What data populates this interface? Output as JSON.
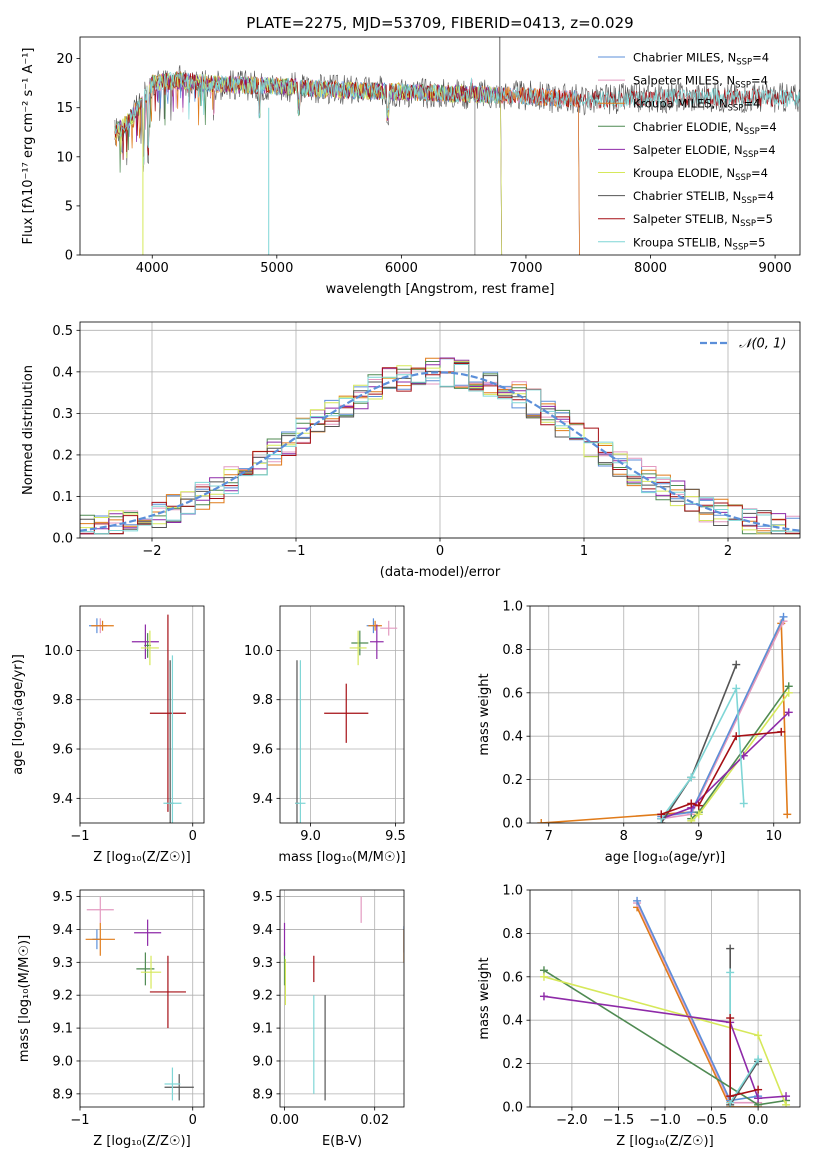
{
  "colors": {
    "Chabrier MILES": "#5b8fd9",
    "Salpeter MILES": "#e39ac0",
    "Kroupa MILES": "#e07b1a",
    "Chabrier ELODIE": "#4f8a52",
    "Salpeter ELODIE": "#8e2aa8",
    "Kroupa ELODIE": "#d6e85a",
    "Chabrier STELIB": "#555555",
    "Salpeter STELIB": "#a50f15",
    "Kroupa STELIB": "#7fd6d6"
  },
  "chart_data": [
    {
      "id": "spectrum",
      "type": "line",
      "title": "PLATE=2275, MJD=53709, FIBERID=0413, z=0.029",
      "xlabel": "wavelength [Angstrom, rest frame]",
      "ylabel": "Flux [fλ10⁻¹⁷ erg cm⁻² s⁻¹ A⁻¹]",
      "xlim": [
        3420,
        9200
      ],
      "ylim": [
        0,
        22.2
      ],
      "xticks": [
        "4000",
        "5000",
        "6000",
        "7000",
        "8000",
        "9000"
      ],
      "yticks": [
        "0",
        "5",
        "10",
        "15",
        "20"
      ],
      "grid": false,
      "legend_position": "top-right",
      "legend": [
        {
          "label": "Chabrier MILES, N",
          "sub": "SSP",
          "suffix": "=4",
          "color": "Chabrier MILES"
        },
        {
          "label": "Salpeter MILES, N",
          "sub": "SSP",
          "suffix": "=4",
          "color": "Salpeter MILES"
        },
        {
          "label": "Kroupa MILES, N",
          "sub": "SSP",
          "suffix": "=4",
          "color": "Kroupa MILES"
        },
        {
          "label": "Chabrier ELODIE, N",
          "sub": "SSP",
          "suffix": "=4",
          "color": "Chabrier ELODIE"
        },
        {
          "label": "Salpeter ELODIE, N",
          "sub": "SSP",
          "suffix": "=4",
          "color": "Salpeter ELODIE"
        },
        {
          "label": "Kroupa ELODIE, N",
          "sub": "SSP",
          "suffix": "=4",
          "color": "Kroupa ELODIE"
        },
        {
          "label": "Chabrier STELIB, N",
          "sub": "SSP",
          "suffix": "=4",
          "color": "Chabrier STELIB"
        },
        {
          "label": "Salpeter STELIB, N",
          "sub": "SSP",
          "suffix": "=5",
          "color": "Salpeter STELIB"
        },
        {
          "label": "Kroupa STELIB, N",
          "sub": "SSP",
          "suffix": "=5",
          "color": "Kroupa STELIB"
        }
      ],
      "x_range": [
        3700,
        9200
      ],
      "continuum_knots": [
        [
          3700,
          12.5
        ],
        [
          3800,
          13.5
        ],
        [
          3900,
          15.2
        ],
        [
          4000,
          17.5
        ],
        [
          4200,
          17.8
        ],
        [
          4500,
          17.4
        ],
        [
          5000,
          17.2
        ],
        [
          5500,
          16.8
        ],
        [
          6000,
          16.6
        ],
        [
          6500,
          16.4
        ],
        [
          7000,
          16.2
        ],
        [
          7500,
          15.8
        ],
        [
          8000,
          16.0
        ],
        [
          8500,
          16.1
        ],
        [
          9000,
          16.0
        ],
        [
          9200,
          16.0
        ]
      ]
    },
    {
      "id": "residuals",
      "type": "histogram",
      "xlabel": "(data-model)/error",
      "ylabel": "Normed distribution",
      "xlim": [
        -2.5,
        2.5
      ],
      "ylim": [
        0,
        0.52
      ],
      "xticks": [
        "−2",
        "−1",
        "0",
        "1",
        "2"
      ],
      "yticks": [
        "0.0",
        "0.1",
        "0.2",
        "0.3",
        "0.4",
        "0.5"
      ],
      "grid": true,
      "legend_position": "top-right",
      "legend": [
        {
          "label": "𝒩(0, 1)",
          "color": "#5b8fd9",
          "dashed": true
        }
      ],
      "bin_width": 0.1,
      "reference_curve": "normal(0,1)"
    },
    {
      "id": "age_vs_Z",
      "type": "errorbar",
      "xlabel": "Z [log₁₀(Z/Z☉)]",
      "ylabel": "age  [log₁₀(age/yr)]",
      "xlim": [
        -1.0,
        0.1
      ],
      "ylim": [
        9.3,
        10.18
      ],
      "xticks": [
        {
          "v": -1,
          "t": "−1"
        },
        {
          "v": 0,
          "t": "0"
        }
      ],
      "yticks": [
        {
          "v": 9.4,
          "t": "9.4"
        },
        {
          "v": 9.6,
          "t": "9.6"
        },
        {
          "v": 9.8,
          "t": "9.8"
        },
        {
          "v": 10.0,
          "t": "10.0"
        }
      ],
      "grid": true,
      "points": [
        {
          "s": "Chabrier MILES",
          "x": -0.85,
          "y": 10.1,
          "xe": 0.07,
          "ye": 0.03
        },
        {
          "s": "Salpeter MILES",
          "x": -0.82,
          "y": 10.1,
          "xe": 0.06,
          "ye": 0.03
        },
        {
          "s": "Kroupa MILES",
          "x": -0.8,
          "y": 10.1,
          "xe": 0.1,
          "ye": 0.02
        },
        {
          "s": "Chabrier ELODIE",
          "x": -0.4,
          "y": 10.02,
          "xe": 0.03,
          "ye": 0.05
        },
        {
          "s": "Salpeter ELODIE",
          "x": -0.42,
          "y": 10.035,
          "xe": 0.12,
          "ye": 0.07
        },
        {
          "s": "Kroupa ELODIE",
          "x": -0.38,
          "y": 10.01,
          "xe": 0.08,
          "ye": 0.07
        },
        {
          "s": "Chabrier STELIB",
          "x": -0.2,
          "y": 9.38,
          "xe": 0.03,
          "ye": 0.58
        },
        {
          "s": "Salpeter STELIB",
          "x": -0.22,
          "y": 9.745,
          "xe": 0.16,
          "ye": 0.4
        },
        {
          "s": "Kroupa STELIB",
          "x": -0.18,
          "y": 9.38,
          "xe": 0.08,
          "ye": 0.6
        }
      ]
    },
    {
      "id": "age_vs_mass",
      "type": "errorbar",
      "xlabel": "mass [log₁₀(M/M☉)]",
      "ylabel": "",
      "xlim": [
        8.82,
        9.55
      ],
      "ylim": [
        9.3,
        10.18
      ],
      "xticks": [
        {
          "v": 9.0,
          "t": "9.0"
        },
        {
          "v": 9.5,
          "t": "9.5"
        }
      ],
      "yticks": [
        {
          "v": 9.4,
          "t": "9.4"
        },
        {
          "v": 9.6,
          "t": "9.6"
        },
        {
          "v": 9.8,
          "t": "9.8"
        },
        {
          "v": 10.0,
          "t": "10.0"
        }
      ],
      "grid": true,
      "points": [
        {
          "s": "Chabrier MILES",
          "x": 9.37,
          "y": 10.1,
          "xe": 0.04,
          "ye": 0.03
        },
        {
          "s": "Salpeter MILES",
          "x": 9.46,
          "y": 10.09,
          "xe": 0.05,
          "ye": 0.03
        },
        {
          "s": "Kroupa MILES",
          "x": 9.38,
          "y": 10.1,
          "xe": 0.04,
          "ye": 0.02
        },
        {
          "s": "Chabrier ELODIE",
          "x": 9.29,
          "y": 10.03,
          "xe": 0.05,
          "ye": 0.05
        },
        {
          "s": "Salpeter ELODIE",
          "x": 9.39,
          "y": 10.035,
          "xe": 0.04,
          "ye": 0.07
        },
        {
          "s": "Kroupa ELODIE",
          "x": 9.28,
          "y": 10.01,
          "xe": 0.05,
          "ye": 0.07
        },
        {
          "s": "Chabrier STELIB",
          "x": 8.92,
          "y": 9.38,
          "xe": 0.01,
          "ye": 0.58
        },
        {
          "s": "Salpeter STELIB",
          "x": 9.21,
          "y": 9.745,
          "xe": 0.13,
          "ye": 0.12
        },
        {
          "s": "Kroupa STELIB",
          "x": 8.94,
          "y": 9.38,
          "xe": 0.03,
          "ye": 0.58
        }
      ]
    },
    {
      "id": "weight_vs_age",
      "type": "line",
      "xlabel": "age  [log₁₀(age/yr)]",
      "ylabel": "mass weight",
      "xlim": [
        6.75,
        10.35
      ],
      "ylim": [
        0,
        1.0
      ],
      "xticks": [
        {
          "v": 7,
          "t": "7"
        },
        {
          "v": 8,
          "t": "8"
        },
        {
          "v": 9,
          "t": "9"
        },
        {
          "v": 10,
          "t": "10"
        }
      ],
      "yticks": [
        {
          "v": 0,
          "t": "0.0"
        },
        {
          "v": 0.2,
          "t": "0.2"
        },
        {
          "v": 0.4,
          "t": "0.4"
        },
        {
          "v": 0.6,
          "t": "0.6"
        },
        {
          "v": 0.8,
          "t": "0.8"
        },
        {
          "v": 1.0,
          "t": "1.0"
        }
      ],
      "grid": true,
      "series": [
        {
          "s": "Kroupa MILES",
          "pts": [
            [
              6.9,
              0.0
            ],
            [
              8.9,
              0.05
            ],
            [
              10.1,
              0.92
            ],
            [
              10.18,
              0.04
            ]
          ]
        },
        {
          "s": "Salpeter MILES",
          "pts": [
            [
              8.5,
              0.02
            ],
            [
              8.9,
              0.04
            ],
            [
              10.13,
              0.93
            ]
          ]
        },
        {
          "s": "Chabrier MILES",
          "pts": [
            [
              8.5,
              0.03
            ],
            [
              8.9,
              0.05
            ],
            [
              10.13,
              0.95
            ]
          ]
        },
        {
          "s": "Chabrier ELODIE",
          "pts": [
            [
              8.9,
              0.02
            ],
            [
              9.0,
              0.05
            ],
            [
              10.2,
              0.63
            ]
          ]
        },
        {
          "s": "Kroupa ELODIE",
          "pts": [
            [
              8.9,
              0.01
            ],
            [
              9.0,
              0.04
            ],
            [
              10.2,
              0.6
            ]
          ]
        },
        {
          "s": "Salpeter ELODIE",
          "pts": [
            [
              8.5,
              0.02
            ],
            [
              8.9,
              0.07
            ],
            [
              9.6,
              0.31
            ],
            [
              10.2,
              0.51
            ]
          ]
        },
        {
          "s": "Chabrier STELIB",
          "pts": [
            [
              8.5,
              0.0
            ],
            [
              8.9,
              0.21
            ],
            [
              9.5,
              0.73
            ]
          ]
        },
        {
          "s": "Kroupa STELIB",
          "pts": [
            [
              8.5,
              0.02
            ],
            [
              8.9,
              0.21
            ],
            [
              9.5,
              0.62
            ],
            [
              9.6,
              0.09
            ]
          ]
        },
        {
          "s": "Salpeter STELIB",
          "pts": [
            [
              8.5,
              0.04
            ],
            [
              8.9,
              0.09
            ],
            [
              9.0,
              0.08
            ],
            [
              9.5,
              0.4
            ],
            [
              10.1,
              0.42
            ]
          ]
        }
      ]
    },
    {
      "id": "mass_vs_Z",
      "type": "errorbar",
      "xlabel": "Z [log₁₀(Z/Z☉)]",
      "ylabel": "mass [log₁₀(M/M☉)]",
      "xlim": [
        -1.0,
        0.1
      ],
      "ylim": [
        8.86,
        9.52
      ],
      "xticks": [
        {
          "v": -1,
          "t": "−1"
        },
        {
          "v": 0,
          "t": "0"
        }
      ],
      "yticks": [
        {
          "v": 8.9,
          "t": "8.9"
        },
        {
          "v": 9.0,
          "t": "9.0"
        },
        {
          "v": 9.1,
          "t": "9.1"
        },
        {
          "v": 9.2,
          "t": "9.2"
        },
        {
          "v": 9.3,
          "t": "9.3"
        },
        {
          "v": 9.4,
          "t": "9.4"
        },
        {
          "v": 9.5,
          "t": "9.5"
        }
      ],
      "grid": true,
      "points": [
        {
          "s": "Chabrier MILES",
          "x": -0.85,
          "y": 9.37,
          "xe": 0.04,
          "ye": 0.03
        },
        {
          "s": "Salpeter MILES",
          "x": -0.82,
          "y": 9.46,
          "xe": 0.12,
          "ye": 0.04
        },
        {
          "s": "Kroupa MILES",
          "x": -0.82,
          "y": 9.37,
          "xe": 0.13,
          "ye": 0.05
        },
        {
          "s": "Chabrier ELODIE",
          "x": -0.42,
          "y": 9.28,
          "xe": 0.08,
          "ye": 0.05
        },
        {
          "s": "Salpeter ELODIE",
          "x": -0.4,
          "y": 9.39,
          "xe": 0.12,
          "ye": 0.04
        },
        {
          "s": "Kroupa ELODIE",
          "x": -0.37,
          "y": 9.27,
          "xe": 0.09,
          "ye": 0.05
        },
        {
          "s": "Chabrier STELIB",
          "x": -0.12,
          "y": 8.92,
          "xe": 0.13,
          "ye": 0.04
        },
        {
          "s": "Salpeter STELIB",
          "x": -0.22,
          "y": 9.21,
          "xe": 0.16,
          "ye": 0.11
        },
        {
          "s": "Kroupa STELIB",
          "x": -0.18,
          "y": 8.93,
          "xe": 0.07,
          "ye": 0.05
        }
      ]
    },
    {
      "id": "mass_vs_EBV",
      "type": "errorbar",
      "xlabel": "E(B-V)",
      "ylabel": "",
      "xlim": [
        -0.001,
        0.0265
      ],
      "ylim": [
        8.86,
        9.52
      ],
      "xticks": [
        {
          "v": 0,
          "t": "0.00"
        },
        {
          "v": 0.02,
          "t": "0.02"
        }
      ],
      "yticks": [
        {
          "v": 8.9,
          "t": "8.9"
        },
        {
          "v": 9.0,
          "t": "9.0"
        },
        {
          "v": 9.1,
          "t": "9.1"
        },
        {
          "v": 9.2,
          "t": "9.2"
        },
        {
          "v": 9.3,
          "t": "9.3"
        },
        {
          "v": 9.4,
          "t": "9.4"
        },
        {
          "v": 9.5,
          "t": "9.5"
        }
      ],
      "grid": true,
      "points": [
        {
          "s": "Chabrier MILES",
          "x": 0.0265,
          "y": 9.37,
          "xe": 0,
          "ye": 0.04
        },
        {
          "s": "Salpeter MILES",
          "x": 0.017,
          "y": 9.46,
          "xe": 0,
          "ye": 0.04
        },
        {
          "s": "Kroupa MILES",
          "x": 0.0265,
          "y": 9.35,
          "xe": 0,
          "ye": 0.05
        },
        {
          "s": "Chabrier ELODIE",
          "x": 0.0,
          "y": 9.28,
          "xe": 0,
          "ye": 0.05
        },
        {
          "s": "Salpeter ELODIE",
          "x": 0.0,
          "y": 9.37,
          "xe": 0,
          "ye": 0.05
        },
        {
          "s": "Kroupa ELODIE",
          "x": 0.0002,
          "y": 9.24,
          "xe": 0,
          "ye": 0.07
        },
        {
          "s": "Chabrier STELIB",
          "x": 0.009,
          "y": 9.04,
          "xe": 0,
          "ye": 0.16
        },
        {
          "s": "Salpeter STELIB",
          "x": 0.0065,
          "y": 9.28,
          "xe": 0,
          "ye": 0.04
        },
        {
          "s": "Kroupa STELIB",
          "x": 0.0065,
          "y": 9.05,
          "xe": 0,
          "ye": 0.15
        }
      ]
    },
    {
      "id": "weight_vs_Z",
      "type": "line",
      "xlabel": "Z [log₁₀(Z/Z☉)]",
      "ylabel": "mass weight",
      "xlim": [
        -2.45,
        0.45
      ],
      "ylim": [
        0,
        1.0
      ],
      "xticks": [
        {
          "v": -2,
          "t": "−2.0"
        },
        {
          "v": -1.5,
          "t": "−1.5"
        },
        {
          "v": -1,
          "t": "−1.0"
        },
        {
          "v": -0.5,
          "t": "−0.5"
        },
        {
          "v": 0,
          "t": "0.0"
        }
      ],
      "yticks": [
        {
          "v": 0,
          "t": "0.0"
        },
        {
          "v": 0.2,
          "t": "0.2"
        },
        {
          "v": 0.4,
          "t": "0.4"
        },
        {
          "v": 0.6,
          "t": "0.6"
        },
        {
          "v": 0.8,
          "t": "0.8"
        },
        {
          "v": 1.0,
          "t": "1.0"
        }
      ],
      "grid": true,
      "series": [
        {
          "s": "Kroupa MILES",
          "pts": [
            [
              -1.3,
              0.92
            ],
            [
              -0.3,
              0.0
            ],
            [
              0.0,
              0.0
            ]
          ]
        },
        {
          "s": "Salpeter MILES",
          "pts": [
            [
              -1.3,
              0.94
            ],
            [
              -0.3,
              0.02
            ],
            [
              0.0,
              0.02
            ]
          ]
        },
        {
          "s": "Chabrier MILES",
          "pts": [
            [
              -1.3,
              0.95
            ],
            [
              -0.3,
              0.03
            ],
            [
              0.0,
              0.05
            ]
          ]
        },
        {
          "s": "Chabrier ELODIE",
          "pts": [
            [
              -2.3,
              0.63
            ],
            [
              0.0,
              0.01
            ],
            [
              0.3,
              0.03
            ]
          ]
        },
        {
          "s": "Kroupa ELODIE",
          "pts": [
            [
              -2.3,
              0.6
            ],
            [
              0.0,
              0.33
            ],
            [
              0.3,
              0.01
            ]
          ]
        },
        {
          "s": "Salpeter ELODIE",
          "pts": [
            [
              -2.3,
              0.51
            ],
            [
              -0.3,
              0.39
            ],
            [
              0.0,
              0.04
            ],
            [
              0.3,
              0.05
            ]
          ]
        },
        {
          "s": "Chabrier STELIB",
          "pts": [
            [
              -0.3,
              0.73
            ],
            [
              -0.3,
              0.01
            ],
            [
              0.0,
              0.21
            ]
          ]
        },
        {
          "s": "Kroupa STELIB",
          "pts": [
            [
              -0.3,
              0.62
            ],
            [
              -0.3,
              0.02
            ],
            [
              0.0,
              0.22
            ]
          ]
        },
        {
          "s": "Salpeter STELIB",
          "pts": [
            [
              -0.3,
              0.41
            ],
            [
              -0.3,
              0.05
            ],
            [
              0.0,
              0.08
            ]
          ]
        }
      ]
    }
  ]
}
